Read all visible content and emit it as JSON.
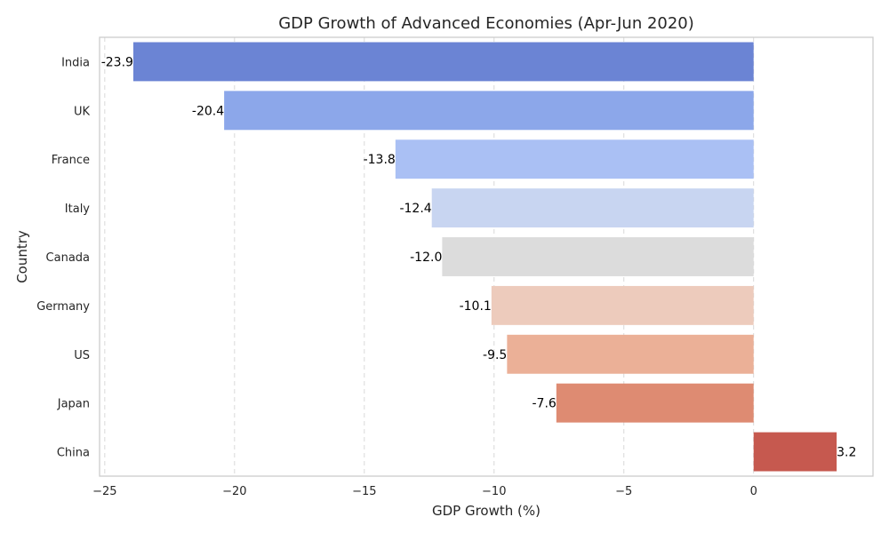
{
  "chart_data": {
    "type": "bar",
    "orientation": "horizontal",
    "title": "GDP Growth of Advanced Economies (Apr-Jun 2020)",
    "xlabel": "GDP Growth (%)",
    "ylabel": "Country",
    "categories": [
      "India",
      "UK",
      "France",
      "Italy",
      "Canada",
      "Germany",
      "US",
      "Japan",
      "China"
    ],
    "values": [
      -23.9,
      -20.4,
      -13.8,
      -12.4,
      -12.0,
      -10.1,
      -9.5,
      -7.6,
      3.2
    ],
    "data_labels": [
      "-23.9",
      "-20.4",
      "-13.8",
      "-12.4",
      "-12.0",
      "-10.1",
      "-9.5",
      "-7.6",
      "3.2"
    ],
    "colors": [
      "#6b84d4",
      "#8ca7ea",
      "#aac0f4",
      "#c8d5f1",
      "#dcdcdc",
      "#edcbbc",
      "#ebb097",
      "#de8b72",
      "#c6594f"
    ],
    "xlim": [
      -25.2,
      4.6
    ],
    "xticks": [
      -25,
      -20,
      -15,
      -10,
      -5,
      0
    ],
    "xtick_labels": [
      "−25",
      "−20",
      "−15",
      "−10",
      "−5",
      "0"
    ],
    "grid": "x-dashed",
    "legend": "none"
  }
}
